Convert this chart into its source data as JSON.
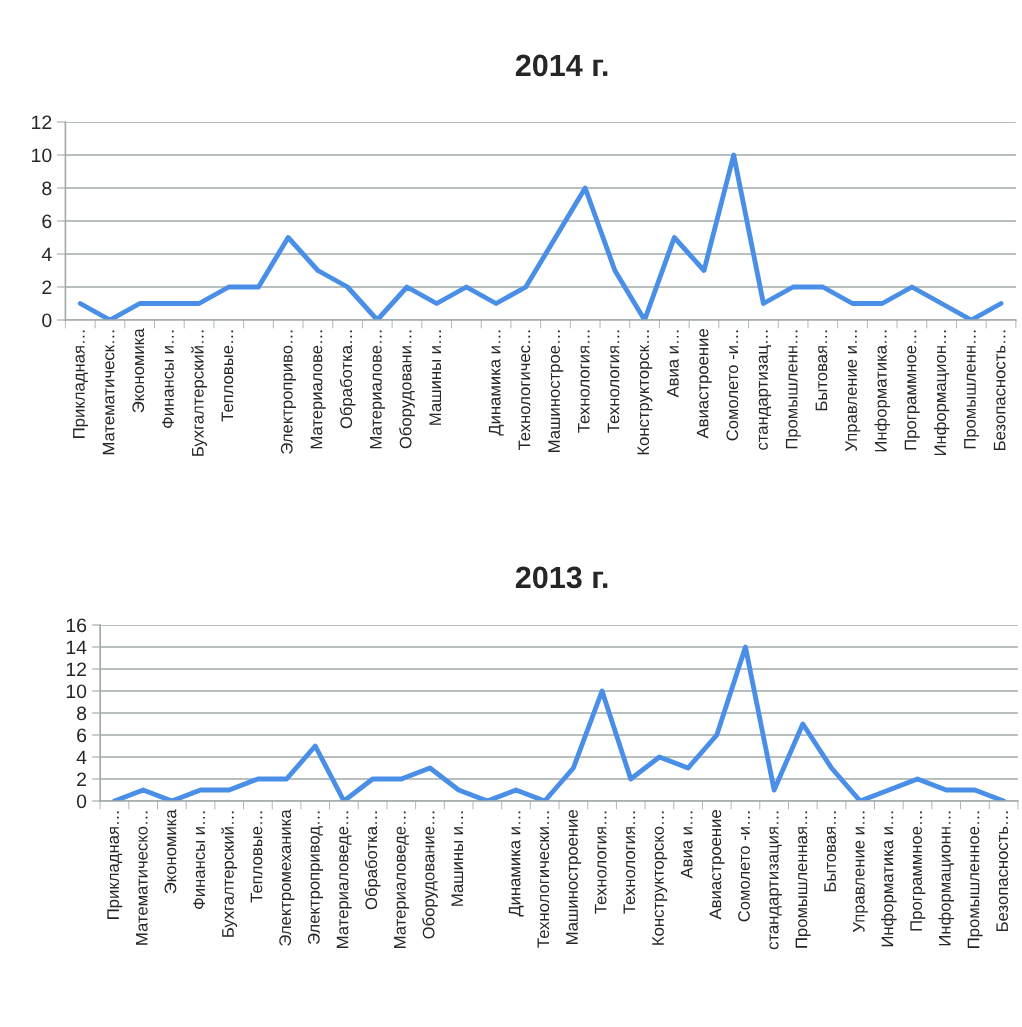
{
  "chart_data": [
    {
      "type": "line",
      "title": "2014 г.",
      "categories": [
        "Прикладная…",
        "Математическ…",
        "Экономика",
        "Финансы и…",
        "Бухгалтерский…",
        "Тепловые…",
        null,
        "Электроприво…",
        "Материалове…",
        "Обработка…",
        "Материалове…",
        "Оборудовани…",
        "Машины и…",
        null,
        "Динамика и…",
        "Технологичес…",
        "Машинострое…",
        "Технология…",
        "Технология…",
        "Конструкторск…",
        "Авиа и…",
        "Авиастроение",
        "Сомолето -и…",
        "стандартизац…",
        "Промышленн…",
        "Бытовая…",
        "Управление и…",
        "Информатика…",
        "Программное…",
        "Информацион…",
        "Промышленн…",
        "Безопасность…"
      ],
      "series": [
        {
          "color": "#4a8fe7",
          "values": [
            1,
            0,
            1,
            1,
            1,
            2,
            2,
            5,
            3,
            2,
            0,
            2,
            1,
            2,
            1,
            2,
            5,
            8,
            3,
            0,
            5,
            3,
            10,
            1,
            2,
            2,
            1,
            1,
            2,
            1,
            0,
            1
          ]
        }
      ],
      "ylim": [
        0,
        12
      ],
      "yticks": [
        0,
        2,
        4,
        6,
        8,
        10,
        12
      ],
      "grid": "y",
      "legend": false,
      "marker": "none",
      "line_style": "solid"
    },
    {
      "type": "line",
      "title": "2013 г.",
      "categories": [
        "Прикладная…",
        "Математическо…",
        "Экономика",
        "Финансы и…",
        "Бухгалтерский…",
        "Тепловые…",
        "Электромеханика",
        "Электропривод…",
        "Материаловеде…",
        "Обработка…",
        "Материаловеде…",
        "Оборудование…",
        "Машины и…",
        null,
        "Динамика и…",
        "Технологически…",
        "Машиностроение",
        "Технология…",
        "Технология…",
        "Конструкторско…",
        "Авиа и…",
        "Авиастроение",
        "Сомолето -и…",
        "стандартизация…",
        "Промышленная…",
        "Бытовая…",
        "Управление и…",
        "Информатика и…",
        "Программное…",
        "Информационн…",
        "Промышленное…",
        "Безопасность…"
      ],
      "series": [
        {
          "color": "#4a8fe7",
          "values": [
            0,
            1,
            0,
            1,
            1,
            2,
            2,
            5,
            0,
            2,
            2,
            3,
            1,
            0,
            1,
            0,
            3,
            10,
            2,
            4,
            3,
            6,
            14,
            1,
            7,
            3,
            0,
            1,
            2,
            1,
            1,
            0
          ]
        }
      ],
      "ylim": [
        0,
        16
      ],
      "yticks": [
        0,
        2,
        4,
        6,
        8,
        10,
        12,
        14,
        16
      ],
      "grid": "y",
      "legend": false,
      "marker": "none",
      "line_style": "solid"
    }
  ]
}
